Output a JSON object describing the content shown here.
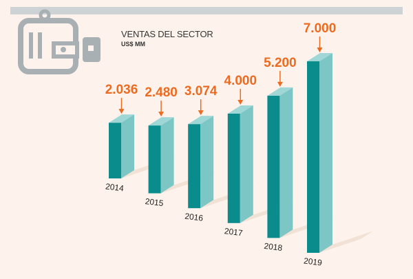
{
  "chart_data": {
    "type": "bar",
    "title": "VENTAS DEL SECTOR",
    "subtitle": "US$ MM",
    "categories": [
      "2014",
      "2015",
      "2016",
      "2017",
      "2018",
      "2019"
    ],
    "values": [
      2036,
      2480,
      3074,
      4000,
      5200,
      7000
    ],
    "value_labels": [
      "2.036",
      "2.480",
      "3.074",
      "4.000",
      "5.200",
      "7.000"
    ],
    "ylim": [
      0,
      7000
    ],
    "grid": false,
    "legend": "none"
  },
  "colors": {
    "background": "#fdf3ec",
    "top_bar": "#cdd3d5",
    "bar_front": "#0a8c8c",
    "bar_side": "#7cc6c6",
    "bar_top": "#9fd6d6",
    "value_label": "#ec6b21",
    "arrow": "#ec6b21",
    "shadow": "#f2e2d6",
    "icon": "#a8b0b4"
  },
  "icon": "wallet-icon"
}
